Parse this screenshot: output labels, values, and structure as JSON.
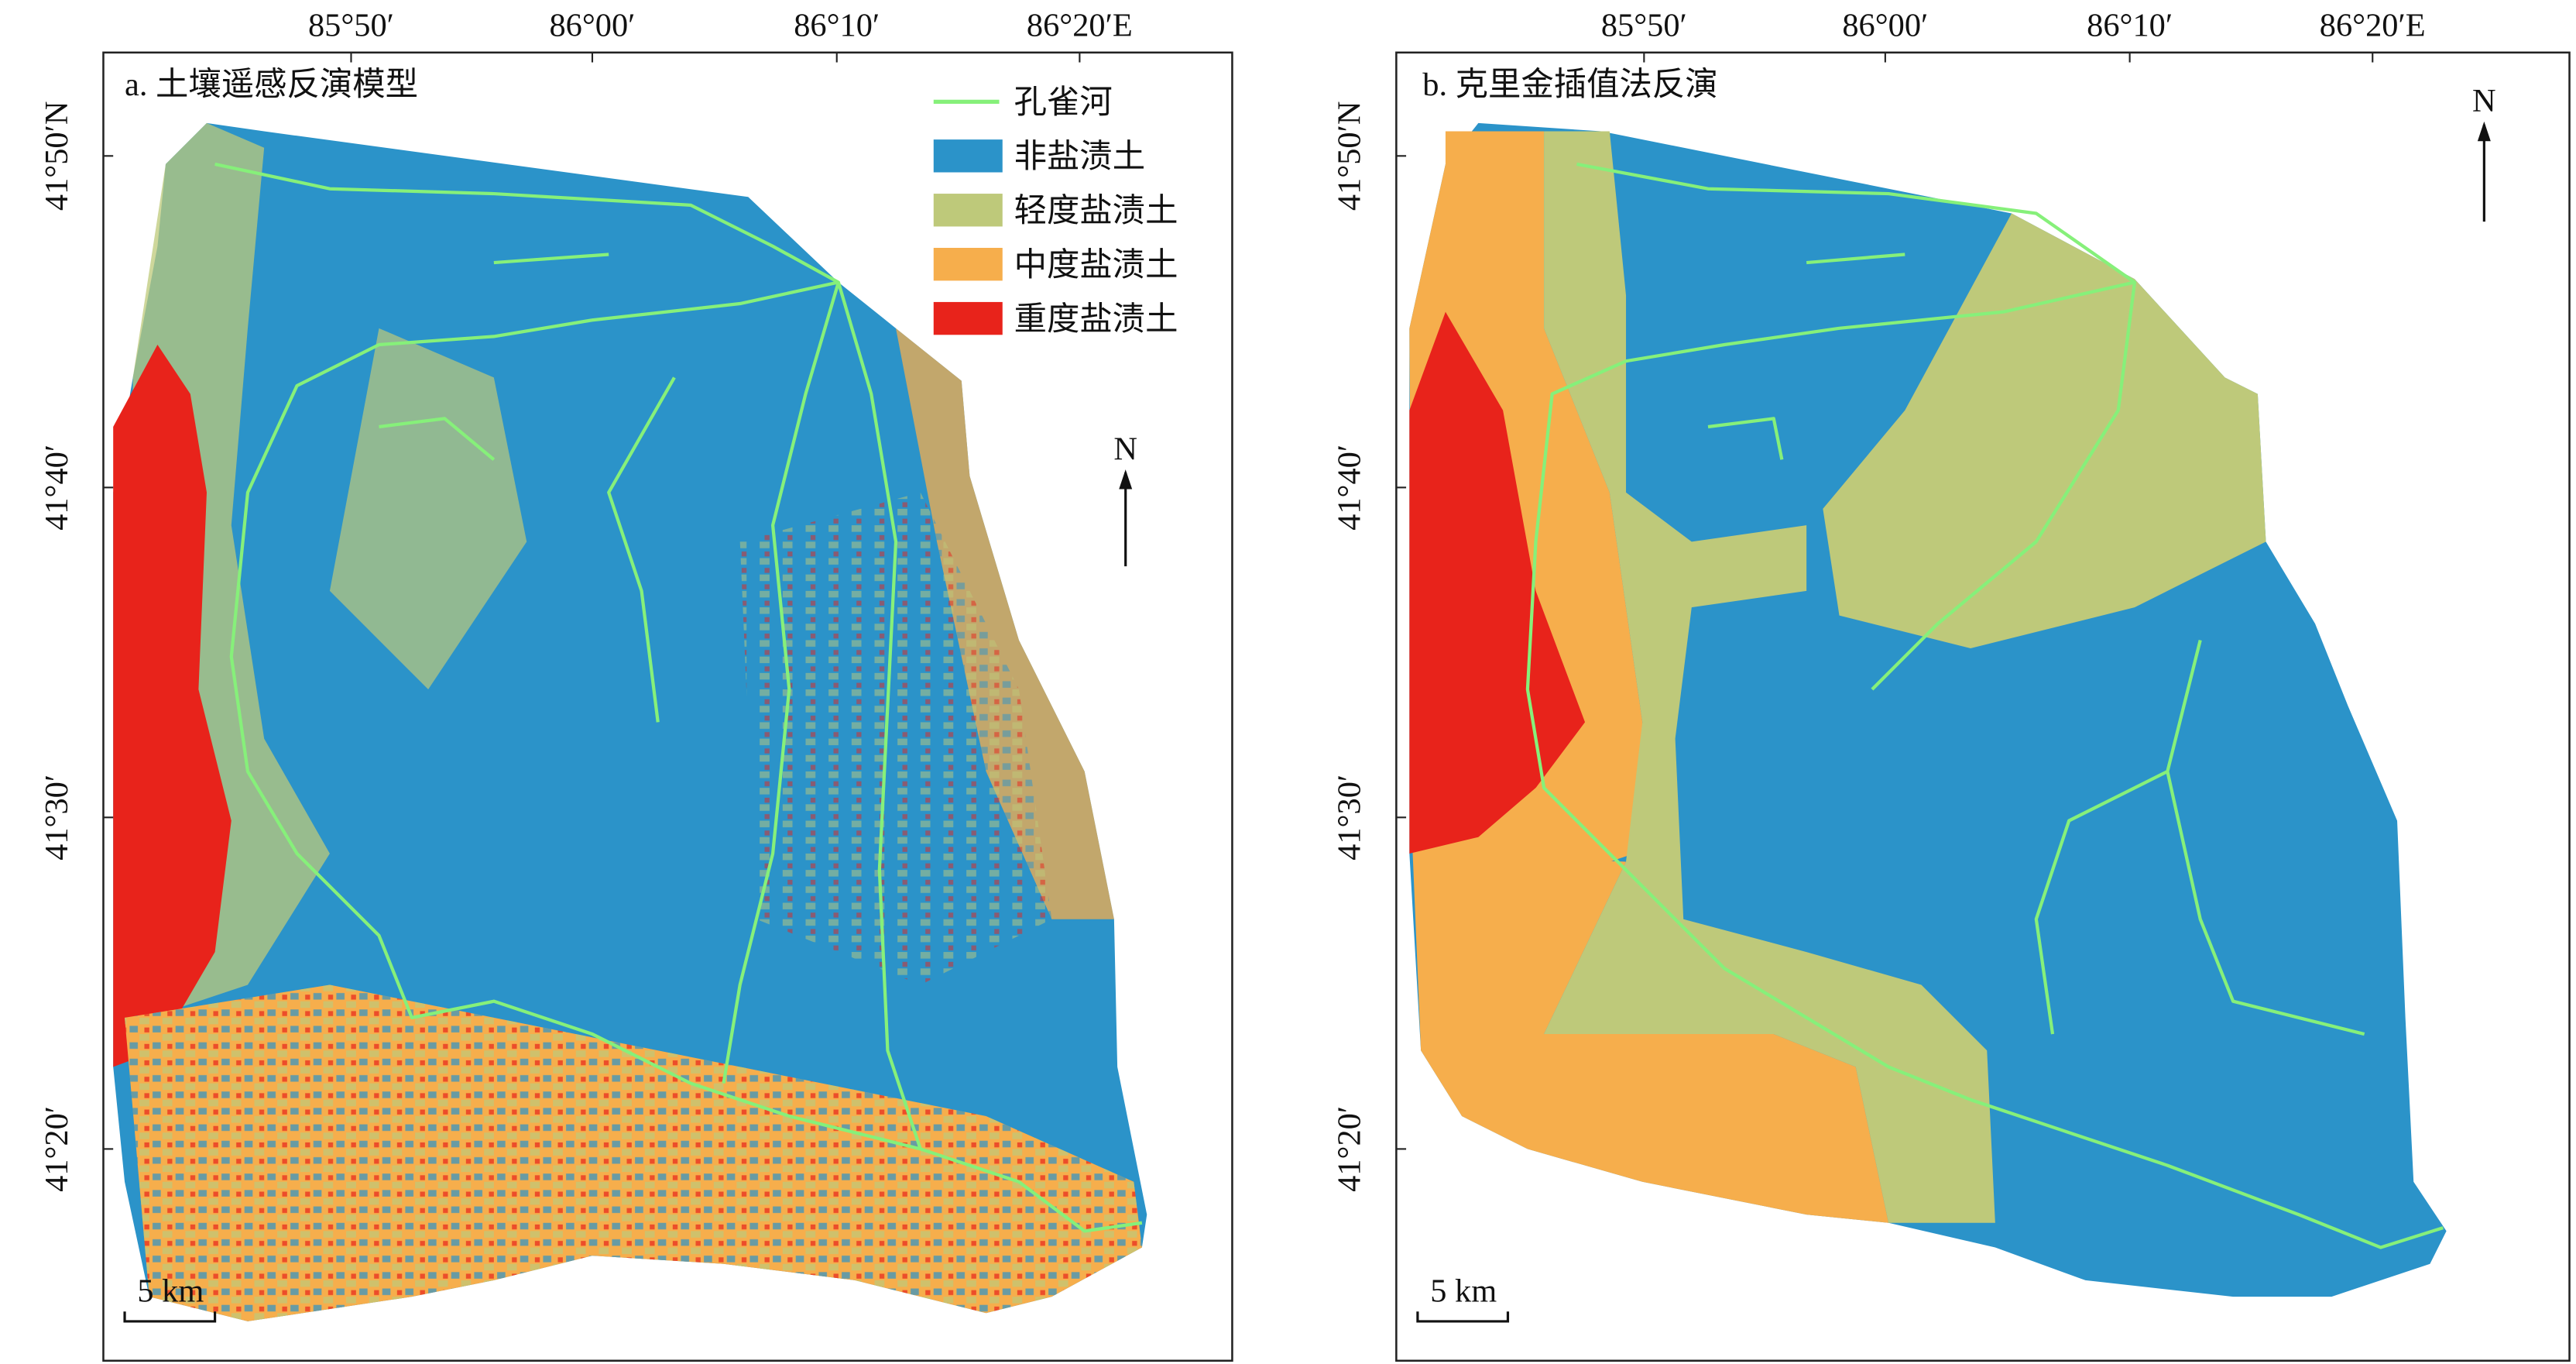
{
  "panels": [
    {
      "title": "a. 土壤遥感反演模型",
      "x_ticks": [
        "85°50′",
        "86°00′",
        "86°10′",
        "86°20′E"
      ],
      "y_ticks": [
        "41°50′N",
        "41°40′",
        "41°30′",
        "41°20′"
      ],
      "north": "N",
      "scale_bar": "5 km",
      "legend": [
        {
          "label": "孔雀河",
          "color": "#86f07a"
        },
        {
          "label": "非盐渍土",
          "color": "#2b93c9"
        },
        {
          "label": "轻度盐渍土",
          "color": "#bec97a"
        },
        {
          "label": "中度盐渍土",
          "color": "#f6ae4c"
        },
        {
          "label": "重度盐渍土",
          "color": "#e8231b"
        }
      ]
    },
    {
      "title": "b. 克里金插值法反演",
      "x_ticks": [
        "85°50′",
        "86°00′",
        "86°10′",
        "86°20′E"
      ],
      "y_ticks": [
        "41°50′N",
        "41°40′",
        "41°30′",
        "41°20′"
      ],
      "north": "N",
      "scale_bar": "5 km"
    }
  ]
}
